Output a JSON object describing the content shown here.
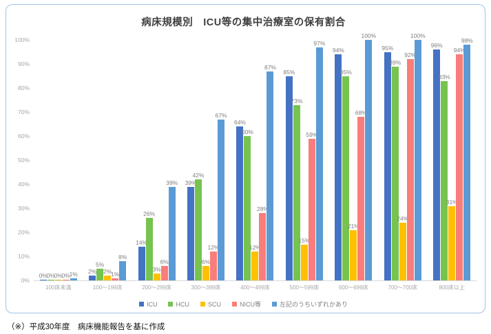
{
  "chart_data": {
    "type": "bar",
    "title": "病床規模別　ICU等の集中治療室の保有割合",
    "categories": [
      "100床未満",
      "100〜199床",
      "200〜299床",
      "300〜399床",
      "400〜499床",
      "500〜599床",
      "600〜699床",
      "700〜700床",
      "800床以上"
    ],
    "series": [
      {
        "name": "ICU",
        "color": "#4472C4",
        "values": [
          0,
          2,
          14,
          39,
          64,
          85,
          94,
          95,
          96
        ]
      },
      {
        "name": "HCU",
        "color": "#77C34F",
        "values": [
          0,
          5,
          26,
          42,
          60,
          73,
          85,
          89,
          83
        ]
      },
      {
        "name": "SCU",
        "color": "#FFC000",
        "values": [
          0,
          2,
          3,
          6,
          12,
          15,
          21,
          24,
          31
        ]
      },
      {
        "name": "NICU等",
        "color": "#F97D7A",
        "values": [
          0,
          1,
          6,
          12,
          28,
          59,
          68,
          92,
          94
        ]
      },
      {
        "name": "左記のうちいずれかあり",
        "color": "#5B9BD5",
        "values": [
          1,
          8,
          39,
          67,
          87,
          97,
          100,
          100,
          98
        ]
      }
    ],
    "ylim": [
      0,
      100
    ],
    "y_ticks": [
      "0%",
      "10%",
      "20%",
      "30%",
      "40%",
      "50%",
      "60%",
      "70%",
      "80%",
      "90%",
      "100%"
    ],
    "value_suffix": "%",
    "legend_position": "bottom",
    "grid": false,
    "data_labels": true,
    "colors_meta": {
      "border": "#9DC3E6",
      "axis_line": "#D9D9D9",
      "tick_text": "#A6A6A6",
      "data_label_text": "#7F7F7F",
      "title_text": "#3F3F3F"
    }
  },
  "footer": {
    "note": "（※）平成30年度　病床機能報告を基に作成"
  }
}
